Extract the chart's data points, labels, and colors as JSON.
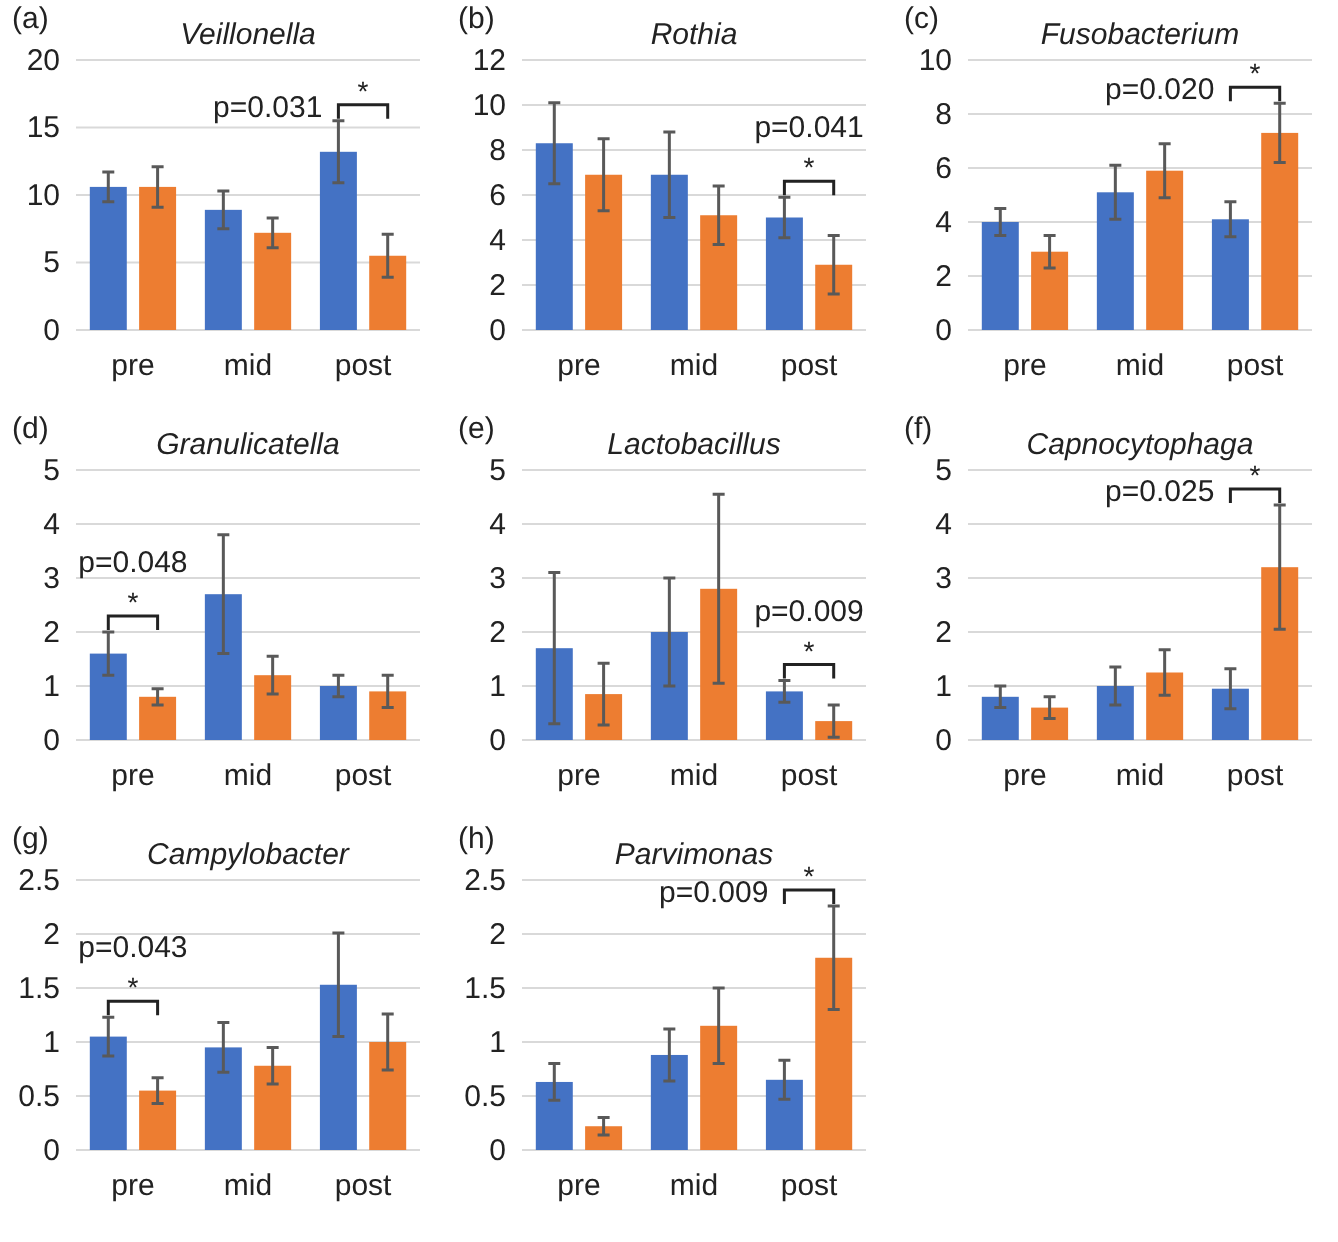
{
  "chart_data": [
    {
      "type": "bar",
      "title": "Veillonella",
      "categories": [
        "pre",
        "mid",
        "post"
      ],
      "ylim": [
        0,
        20
      ],
      "yticks": [
        0,
        5,
        10,
        15,
        20
      ],
      "grid": "y",
      "annotations": [
        "(a)",
        "p=0.031",
        "*"
      ],
      "series": [
        {
          "color": "#4472c4",
          "values": [
            10.6,
            8.9,
            13.2
          ],
          "errors": [
            1.1,
            1.4,
            2.3
          ]
        },
        {
          "color": "#ed7d31",
          "values": [
            10.6,
            7.2,
            5.5
          ],
          "errors": [
            1.5,
            1.1,
            1.6
          ]
        }
      ]
    },
    {
      "type": "bar",
      "title": "Rothia",
      "categories": [
        "pre",
        "mid",
        "post"
      ],
      "ylim": [
        0,
        12
      ],
      "yticks": [
        0,
        2,
        4,
        6,
        8,
        10,
        12
      ],
      "grid": "y",
      "annotations": [
        "(b)",
        "p=0.041",
        "*"
      ],
      "series": [
        {
          "color": "#4472c4",
          "values": [
            8.3,
            6.9,
            5.0
          ],
          "errors": [
            1.8,
            1.9,
            0.9
          ]
        },
        {
          "color": "#ed7d31",
          "values": [
            6.9,
            5.1,
            2.9
          ],
          "errors": [
            1.6,
            1.3,
            1.3
          ]
        }
      ]
    },
    {
      "type": "bar",
      "title": "Fusobacterium",
      "categories": [
        "pre",
        "mid",
        "post"
      ],
      "ylim": [
        0,
        10
      ],
      "yticks": [
        0,
        2,
        4,
        6,
        8,
        10
      ],
      "grid": "y",
      "annotations": [
        "(c)",
        "p=0.020",
        "*"
      ],
      "series": [
        {
          "color": "#4472c4",
          "values": [
            4.0,
            5.1,
            4.1
          ],
          "errors": [
            0.5,
            1.0,
            0.65
          ]
        },
        {
          "color": "#ed7d31",
          "values": [
            2.9,
            5.9,
            7.3
          ],
          "errors": [
            0.6,
            1.0,
            1.1
          ]
        }
      ]
    },
    {
      "type": "bar",
      "title": "Granulicatella",
      "categories": [
        "pre",
        "mid",
        "post"
      ],
      "ylim": [
        0,
        5
      ],
      "yticks": [
        0,
        1,
        2,
        3,
        4,
        5
      ],
      "grid": "y",
      "annotations": [
        "(d)",
        "p=0.048",
        "*"
      ],
      "series": [
        {
          "color": "#4472c4",
          "values": [
            1.6,
            2.7,
            1.0
          ],
          "errors": [
            0.4,
            1.1,
            0.2
          ]
        },
        {
          "color": "#ed7d31",
          "values": [
            0.8,
            1.2,
            0.9
          ],
          "errors": [
            0.15,
            0.35,
            0.3
          ]
        }
      ]
    },
    {
      "type": "bar",
      "title": "Lactobacillus",
      "categories": [
        "pre",
        "mid",
        "post"
      ],
      "ylim": [
        0,
        5
      ],
      "yticks": [
        0,
        1,
        2,
        3,
        4,
        5
      ],
      "grid": "y",
      "annotations": [
        "(e)",
        "p=0.009",
        "*"
      ],
      "series": [
        {
          "color": "#4472c4",
          "values": [
            1.7,
            2.0,
            0.9
          ],
          "errors": [
            1.4,
            1.0,
            0.2
          ]
        },
        {
          "color": "#ed7d31",
          "values": [
            0.85,
            2.8,
            0.35
          ],
          "errors": [
            0.57,
            1.75,
            0.3
          ]
        }
      ]
    },
    {
      "type": "bar",
      "title": "Capnocytophaga",
      "categories": [
        "pre",
        "mid",
        "post"
      ],
      "ylim": [
        0,
        5
      ],
      "yticks": [
        0,
        1,
        2,
        3,
        4,
        5
      ],
      "grid": "y",
      "annotations": [
        "(f)",
        "p=0.025",
        "*"
      ],
      "series": [
        {
          "color": "#4472c4",
          "values": [
            0.8,
            1.0,
            0.95
          ],
          "errors": [
            0.2,
            0.35,
            0.37
          ]
        },
        {
          "color": "#ed7d31",
          "values": [
            0.6,
            1.25,
            3.2
          ],
          "errors": [
            0.2,
            0.42,
            1.15
          ]
        }
      ]
    },
    {
      "type": "bar",
      "title": "Campylobacter",
      "categories": [
        "pre",
        "mid",
        "post"
      ],
      "ylim": [
        0,
        2.5
      ],
      "yticks": [
        0,
        0.5,
        1,
        1.5,
        2,
        2.5
      ],
      "grid": "y",
      "annotations": [
        "(g)",
        "p=0.043",
        "*"
      ],
      "series": [
        {
          "color": "#4472c4",
          "values": [
            1.05,
            0.95,
            1.53
          ],
          "errors": [
            0.18,
            0.23,
            0.48
          ]
        },
        {
          "color": "#ed7d31",
          "values": [
            0.55,
            0.78,
            1.0
          ],
          "errors": [
            0.12,
            0.17,
            0.26
          ]
        }
      ]
    },
    {
      "type": "bar",
      "title": "Parvimonas",
      "categories": [
        "pre",
        "mid",
        "post"
      ],
      "ylim": [
        0,
        2.5
      ],
      "yticks": [
        0,
        0.5,
        1,
        1.5,
        2,
        2.5
      ],
      "grid": "y",
      "annotations": [
        "(h)",
        "p=0.009",
        "*"
      ],
      "series": [
        {
          "color": "#4472c4",
          "values": [
            0.63,
            0.88,
            0.65
          ],
          "errors": [
            0.17,
            0.24,
            0.18
          ]
        },
        {
          "color": "#ed7d31",
          "values": [
            0.22,
            1.15,
            1.78
          ],
          "errors": [
            0.08,
            0.35,
            0.48
          ]
        }
      ]
    }
  ]
}
